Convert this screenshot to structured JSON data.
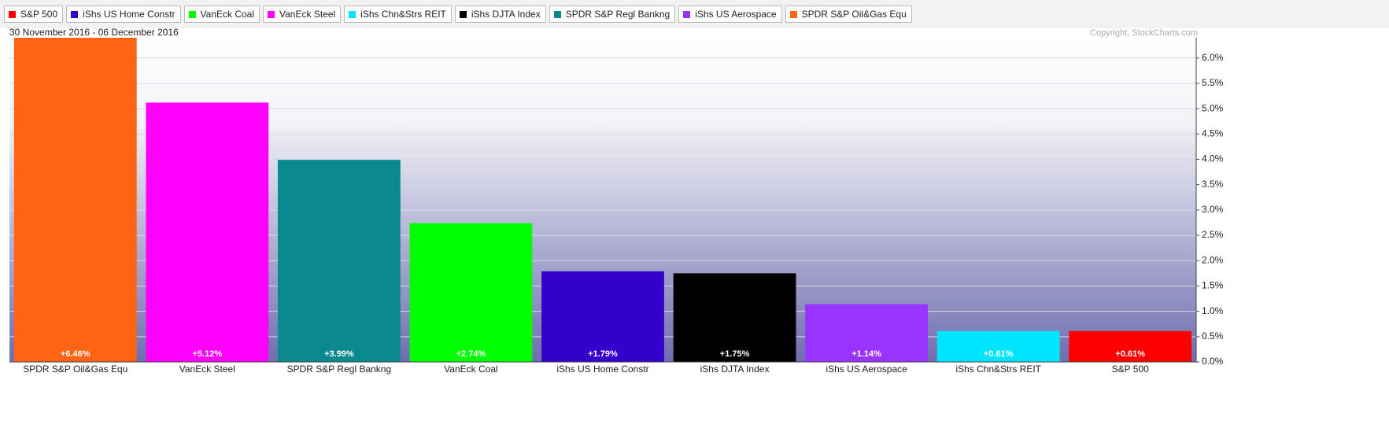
{
  "chart_data": {
    "type": "bar",
    "subtitle": "30 November 2016 - 06 December 2016",
    "copyright": "Copyright, StockCharts.com",
    "legend": [
      {
        "name": "S&P 500",
        "color": "#ff0000"
      },
      {
        "name": "iShs US Home Constr",
        "color": "#3300cc"
      },
      {
        "name": "VanEck Coal",
        "color": "#00ff00"
      },
      {
        "name": "VanEck Steel",
        "color": "#ff00ff"
      },
      {
        "name": "iShs Chn&Strs REIT",
        "color": "#00e5ff"
      },
      {
        "name": "iShs DJTA Index",
        "color": "#000000"
      },
      {
        "name": "SPDR S&P Regl Bankng",
        "color": "#0a8a8f"
      },
      {
        "name": "iShs US Aerospace",
        "color": "#9933ff"
      },
      {
        "name": "SPDR S&P Oil&Gas Equ",
        "color": "#ff6414"
      }
    ],
    "categories": [
      "SPDR S&P Oil&Gas Equ",
      "VanEck Steel",
      "SPDR S&P Regl Bankng",
      "VanEck Coal",
      "iShs US Home Constr",
      "iShs DJTA Index",
      "iShs US Aerospace",
      "iShs Chn&Strs REIT",
      "S&P 500"
    ],
    "values": [
      6.46,
      5.12,
      3.99,
      2.74,
      1.79,
      1.75,
      1.14,
      0.61,
      0.61
    ],
    "value_labels": [
      "+6.46%",
      "+5.12%",
      "+3.99%",
      "+2.74%",
      "+1.79%",
      "+1.75%",
      "+1.14%",
      "+0.61%",
      "+0.61%"
    ],
    "ylim": [
      0,
      6.4
    ],
    "yticks": [
      {
        "value": 0,
        "label": "0.0%"
      },
      {
        "value": 0.5,
        "label": "0.5%"
      },
      {
        "value": 1,
        "label": "1.0%"
      },
      {
        "value": 1.5,
        "label": "1.5%"
      },
      {
        "value": 2,
        "label": "2.0%"
      },
      {
        "value": 2.5,
        "label": "2.5%"
      },
      {
        "value": 3,
        "label": "3.0%"
      },
      {
        "value": 3.5,
        "label": "3.5%"
      },
      {
        "value": 4,
        "label": "4.0%"
      },
      {
        "value": 4.5,
        "label": "4.5%"
      },
      {
        "value": 5,
        "label": "5.0%"
      },
      {
        "value": 5.5,
        "label": "5.5%"
      },
      {
        "value": 6,
        "label": "6.0%"
      }
    ],
    "grid": true
  }
}
